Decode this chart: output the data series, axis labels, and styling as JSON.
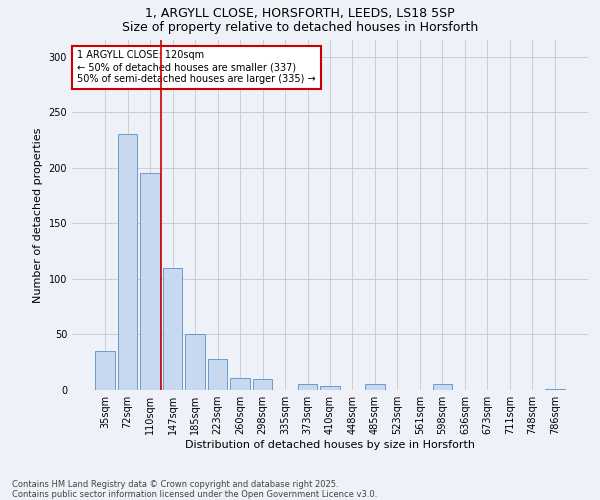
{
  "title_line1": "1, ARGYLL CLOSE, HORSFORTH, LEEDS, LS18 5SP",
  "title_line2": "Size of property relative to detached houses in Horsforth",
  "xlabel": "Distribution of detached houses by size in Horsforth",
  "ylabel": "Number of detached properties",
  "categories": [
    "35sqm",
    "72sqm",
    "110sqm",
    "147sqm",
    "185sqm",
    "223sqm",
    "260sqm",
    "298sqm",
    "335sqm",
    "373sqm",
    "410sqm",
    "448sqm",
    "485sqm",
    "523sqm",
    "561sqm",
    "598sqm",
    "636sqm",
    "673sqm",
    "711sqm",
    "748sqm",
    "786sqm"
  ],
  "values": [
    35,
    230,
    195,
    110,
    50,
    28,
    11,
    10,
    0,
    5,
    4,
    0,
    5,
    0,
    0,
    5,
    0,
    0,
    0,
    0,
    1
  ],
  "bar_color": "#c8d8ee",
  "bar_edgecolor": "#5b8fc9",
  "grid_color": "#c8cdd6",
  "background_color": "#eef1f7",
  "red_line_x": 2.48,
  "annotation_title": "1 ARGYLL CLOSE: 120sqm",
  "annotation_line1": "← 50% of detached houses are smaller (337)",
  "annotation_line2": "50% of semi-detached houses are larger (335) →",
  "annotation_box_facecolor": "#ffffff",
  "annotation_box_edgecolor": "#cc0000",
  "red_line_color": "#cc0000",
  "footer_line1": "Contains HM Land Registry data © Crown copyright and database right 2025.",
  "footer_line2": "Contains public sector information licensed under the Open Government Licence v3.0.",
  "ylim": [
    0,
    315
  ],
  "yticks": [
    0,
    50,
    100,
    150,
    200,
    250,
    300
  ],
  "title_fontsize": 9,
  "axis_label_fontsize": 8,
  "tick_fontsize": 7,
  "annotation_fontsize": 7,
  "footer_fontsize": 6
}
